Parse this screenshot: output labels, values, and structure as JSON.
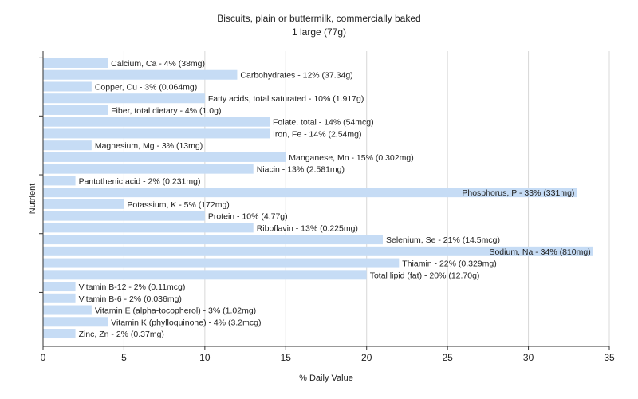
{
  "colors": {
    "bar": "#c6dcf5",
    "grid": "#d8d8d8",
    "axis": "#333333",
    "text": "#222222",
    "plot_bg": "#ffffff"
  },
  "chart_data": {
    "type": "bar",
    "orientation": "horizontal",
    "title": "Biscuits, plain or buttermilk, commercially baked",
    "subtitle": "1 large (77g)",
    "xlabel": "% Daily Value",
    "ylabel": "Nutrient",
    "xlim": [
      0,
      35
    ],
    "xticks": [
      0,
      5,
      10,
      15,
      20,
      25,
      30,
      35
    ],
    "grid": true,
    "categories": [
      "Calcium, Ca",
      "Carbohydrates",
      "Copper, Cu",
      "Fatty acids, total saturated",
      "Fiber, total dietary",
      "Folate, total",
      "Iron, Fe",
      "Magnesium, Mg",
      "Manganese, Mn",
      "Niacin",
      "Pantothenic acid",
      "Phosphorus, P",
      "Potassium, K",
      "Protein",
      "Riboflavin",
      "Selenium, Se",
      "Sodium, Na",
      "Thiamin",
      "Total lipid (fat)",
      "Vitamin B-12",
      "Vitamin B-6",
      "Vitamin E (alpha-tocopherol)",
      "Vitamin K (phylloquinone)",
      "Zinc, Zn"
    ],
    "values": [
      4,
      12,
      3,
      10,
      4,
      14,
      14,
      3,
      15,
      13,
      2,
      33,
      5,
      10,
      13,
      21,
      34,
      22,
      20,
      2,
      2,
      3,
      4,
      2
    ],
    "labels": [
      "Calcium, Ca - 4% (38mg)",
      "Carbohydrates - 12% (37.34g)",
      "Copper, Cu - 3% (0.064mg)",
      "Fatty acids, total saturated - 10% (1.917g)",
      "Fiber, total dietary - 4% (1.0g)",
      "Folate, total - 14% (54mcg)",
      "Iron, Fe - 14% (2.54mg)",
      "Magnesium, Mg - 3% (13mg)",
      "Manganese, Mn - 15% (0.302mg)",
      "Niacin - 13% (2.581mg)",
      "Pantothenic acid - 2% (0.231mg)",
      "Phosphorus, P - 33% (331mg)",
      "Potassium, K - 5% (172mg)",
      "Protein - 10% (4.77g)",
      "Riboflavin - 13% (0.225mg)",
      "Selenium, Se - 21% (14.5mcg)",
      "Sodium, Na - 34% (810mg)",
      "Thiamin - 22% (0.329mg)",
      "Total lipid (fat) - 20% (12.70g)",
      "Vitamin B-12 - 2% (0.11mcg)",
      "Vitamin B-6 - 2% (0.036mg)",
      "Vitamin E (alpha-tocopherol) - 3% (1.02mg)",
      "Vitamin K (phylloquinone) - 4% (3.2mcg)",
      "Zinc, Zn - 2% (0.37mg)"
    ],
    "label_inside": [
      false,
      false,
      false,
      false,
      false,
      false,
      false,
      false,
      false,
      false,
      false,
      true,
      false,
      false,
      false,
      false,
      true,
      false,
      false,
      false,
      false,
      false,
      false,
      false
    ]
  }
}
